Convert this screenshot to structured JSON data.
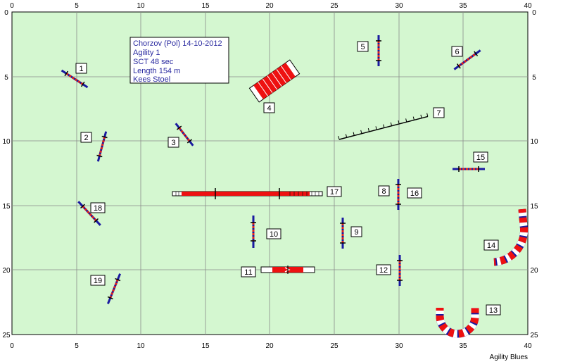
{
  "course": {
    "info": [
      "Chorzov (Pol) 14-10-2012",
      "Agility 1",
      "SCT 48 sec",
      "Length 154 m",
      "Kees Stoel"
    ],
    "brand": "Agility Blues"
  },
  "axes": {
    "x_ticks": [
      "0",
      "5",
      "10",
      "15",
      "20",
      "25",
      "30",
      "35",
      "40"
    ],
    "y_ticks": [
      "0",
      "5",
      "10",
      "15",
      "20",
      "25"
    ]
  },
  "obstacles": [
    {
      "n": "1",
      "type": "jump"
    },
    {
      "n": "2",
      "type": "jump"
    },
    {
      "n": "3",
      "type": "jump"
    },
    {
      "n": "4",
      "type": "tunnel"
    },
    {
      "n": "5",
      "type": "jump"
    },
    {
      "n": "6",
      "type": "jump"
    },
    {
      "n": "7",
      "type": "weave-poles"
    },
    {
      "n": "8",
      "type": "jump"
    },
    {
      "n": "9",
      "type": "jump"
    },
    {
      "n": "10",
      "type": "jump"
    },
    {
      "n": "11",
      "type": "see-saw"
    },
    {
      "n": "12",
      "type": "jump"
    },
    {
      "n": "13",
      "type": "tunnel"
    },
    {
      "n": "14",
      "type": "tunnel"
    },
    {
      "n": "15",
      "type": "jump"
    },
    {
      "n": "16",
      "type": "jump"
    },
    {
      "n": "17",
      "type": "dog-walk"
    },
    {
      "n": "18",
      "type": "jump"
    },
    {
      "n": "19",
      "type": "jump"
    }
  ],
  "colors": {
    "field": "#d4f7d0",
    "tunnel_red": "#ee1111",
    "tunnel_blue": "#1a2ecc",
    "pole_blue": "#1a1aa0"
  }
}
